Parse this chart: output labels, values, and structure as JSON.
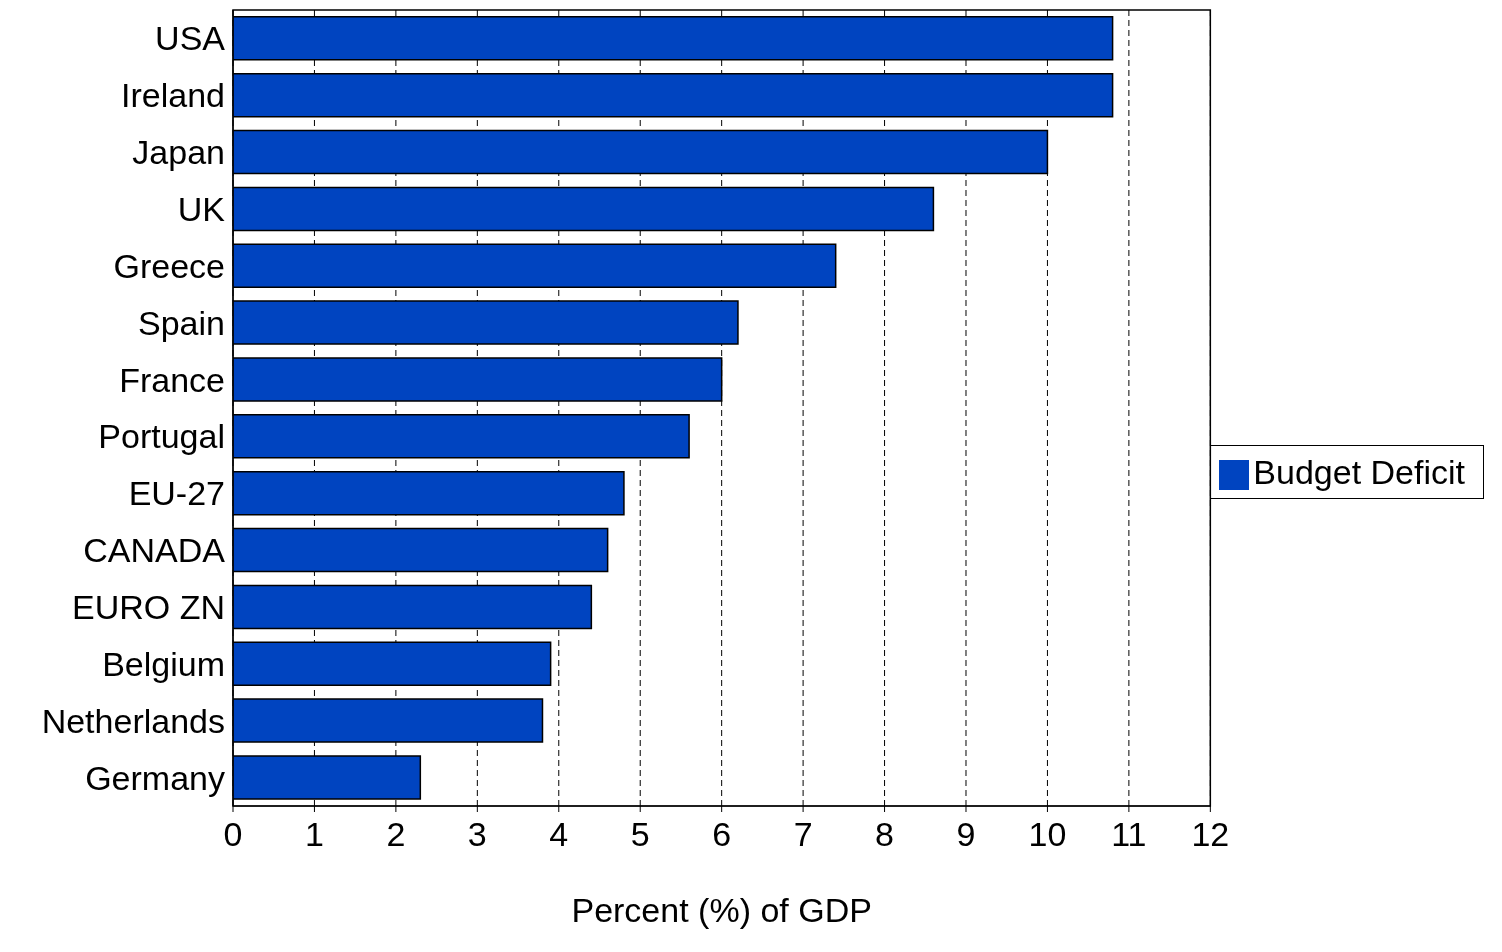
{
  "chart_data": {
    "type": "bar",
    "orientation": "horizontal",
    "xlabel": "Percent (%) of GDP",
    "categories": [
      "USA",
      "Ireland",
      "Japan",
      "UK",
      "Greece",
      "Spain",
      "France",
      "Portugal",
      "EU-27",
      "CANADA",
      "EURO ZN",
      "Belgium",
      "Netherlands",
      "Germany"
    ],
    "series": [
      {
        "name": "Budget Deficit",
        "color": "#0044c0",
        "values": [
          10.8,
          10.8,
          10.0,
          8.6,
          7.4,
          6.2,
          6.0,
          5.6,
          4.8,
          4.6,
          4.4,
          3.9,
          3.8,
          2.3
        ]
      }
    ],
    "xlim": [
      0,
      12
    ],
    "xticks": [
      0,
      1,
      2,
      3,
      4,
      5,
      6,
      7,
      8,
      9,
      10,
      11,
      12
    ],
    "grid": "x",
    "legend": "right"
  }
}
